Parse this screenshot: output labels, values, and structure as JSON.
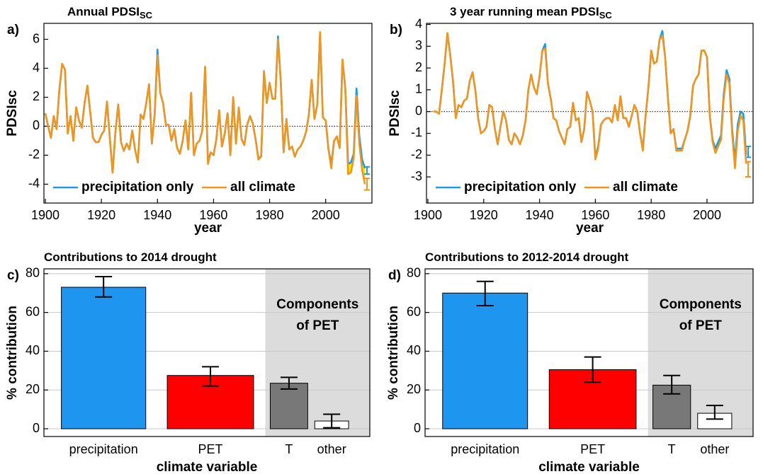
{
  "chart_data": [
    {
      "type": "line",
      "panel_label": "a)",
      "title": "Annual PDSI",
      "title_subscript": "SC",
      "ylabel": "PDSIsc",
      "xlabel": "year",
      "xlim": [
        1899.5,
        2016.5
      ],
      "xticks": [
        1900,
        1920,
        1940,
        1960,
        1980,
        2000
      ],
      "ylim": [
        -5.3,
        7.1
      ],
      "yticks": [
        -4,
        -2,
        0,
        2,
        4,
        6
      ],
      "zero_line": true,
      "legend": "lower left",
      "fill_between_color": "#ffe600",
      "x": [
        1900,
        1901,
        1902,
        1903,
        1904,
        1905,
        1906,
        1907,
        1908,
        1909,
        1910,
        1911,
        1912,
        1913,
        1914,
        1915,
        1916,
        1917,
        1918,
        1919,
        1920,
        1921,
        1922,
        1923,
        1924,
        1925,
        1926,
        1927,
        1928,
        1929,
        1930,
        1931,
        1932,
        1933,
        1934,
        1935,
        1936,
        1937,
        1938,
        1939,
        1940,
        1941,
        1942,
        1943,
        1944,
        1945,
        1946,
        1947,
        1948,
        1949,
        1950,
        1951,
        1952,
        1953,
        1954,
        1955,
        1956,
        1957,
        1958,
        1959,
        1960,
        1961,
        1962,
        1963,
        1964,
        1965,
        1966,
        1967,
        1968,
        1969,
        1970,
        1971,
        1972,
        1973,
        1974,
        1975,
        1976,
        1977,
        1978,
        1979,
        1980,
        1981,
        1982,
        1983,
        1984,
        1985,
        1986,
        1987,
        1988,
        1989,
        1990,
        1991,
        1992,
        1993,
        1994,
        1995,
        1996,
        1997,
        1998,
        1999,
        2000,
        2001,
        2002,
        2003,
        2004,
        2005,
        2006,
        2007,
        2008,
        2009,
        2010,
        2011,
        2012,
        2013,
        2014
      ],
      "series": [
        {
          "name": "precipitation only",
          "color": "#1e9be6",
          "end_range": [
            -3.3,
            -2.8
          ],
          "values": [
            0.9,
            0,
            -0.8,
            0.7,
            -0.2,
            2.5,
            4.3,
            3.9,
            -0.5,
            0.7,
            -1.0,
            1.3,
            0.4,
            -0.1,
            1.6,
            2.8,
            1.0,
            -0.8,
            -1.1,
            -1.1,
            -0.6,
            -0.3,
            1.7,
            -0.8,
            -3.2,
            -0.4,
            1.5,
            -1.1,
            -1.7,
            -1.2,
            -1.6,
            -0.3,
            -1.6,
            -2.5,
            0.8,
            0.5,
            1.6,
            2.9,
            -1.2,
            0.8,
            5.3,
            2.3,
            1.6,
            0.1,
            0.1,
            -1.0,
            -0.2,
            -1.5,
            -1.9,
            -1.0,
            0.4,
            -1.6,
            2.3,
            -2.0,
            -1.2,
            -1.0,
            -0.3,
            4.1,
            -2.4,
            -1.8,
            -2.0,
            -0.9,
            1.1,
            -1.4,
            -0.5,
            0.9,
            -2.0,
            2.0,
            -1.2,
            1.3,
            -0.9,
            -1.3,
            0.1,
            0.7,
            0.2,
            -0.9,
            -2.2,
            -2.1,
            3.8,
            1.6,
            3.0,
            1.9,
            1.9,
            6.2,
            3.0,
            -1.8,
            0.5,
            -1.6,
            -1.4,
            -2.1,
            -1.6,
            -1.4,
            -1.0,
            -0.4,
            0.8,
            3.2,
            0.5,
            1.5,
            6.4,
            0.6,
            0.4,
            -1.6,
            -2.6,
            -1.0,
            -0.7,
            -1.5,
            4.6,
            2.6,
            -2.6,
            -2.5,
            -1.9,
            2.6,
            -0.7,
            -2.3,
            -2.9
          ]
        },
        {
          "name": "all climate",
          "color": "#f0961e",
          "end_range": [
            -4.4,
            -3.6
          ],
          "values": [
            0.9,
            0,
            -0.8,
            0.7,
            -0.2,
            2.5,
            4.3,
            3.9,
            -0.5,
            0.7,
            -1.0,
            1.3,
            0.4,
            -0.1,
            1.6,
            2.8,
            1.0,
            -0.8,
            -1.1,
            -1.1,
            -0.6,
            -0.3,
            1.7,
            -0.8,
            -3.2,
            -0.4,
            1.5,
            -1.1,
            -1.7,
            -1.2,
            -1.6,
            -0.3,
            -1.6,
            -2.5,
            0.8,
            0.5,
            1.6,
            2.9,
            -1.2,
            0.8,
            4.9,
            2.3,
            1.6,
            0.1,
            0.1,
            -1.0,
            -0.2,
            -1.5,
            -1.9,
            -1.0,
            0.4,
            -1.6,
            2.3,
            -2.0,
            -1.2,
            -1.0,
            -0.3,
            4.1,
            -2.6,
            -1.8,
            -2.0,
            -0.9,
            1.1,
            -1.4,
            -0.5,
            0.9,
            -2.0,
            2.0,
            -1.2,
            1.3,
            -0.9,
            -1.3,
            0.1,
            0.7,
            0.2,
            -0.9,
            -2.3,
            -2.1,
            3.8,
            1.6,
            3.0,
            1.9,
            1.9,
            6.0,
            3.0,
            -1.8,
            0.5,
            -1.6,
            -1.4,
            -2.1,
            -1.6,
            -1.4,
            -1.0,
            -0.4,
            0.8,
            3.2,
            0.5,
            1.5,
            6.5,
            0.6,
            0.4,
            -1.6,
            -2.9,
            -1.0,
            -0.7,
            -1.5,
            4.6,
            2.6,
            -3.3,
            -3.2,
            -2.2,
            2.1,
            -1.2,
            -3.0,
            -4.0
          ]
        }
      ]
    },
    {
      "type": "line",
      "panel_label": "b)",
      "title": "3 year running mean PDSI",
      "title_subscript": "SC",
      "ylabel": "PDSIsc",
      "xlabel": "year",
      "xlim": [
        1899.5,
        2016.5
      ],
      "xticks": [
        1900,
        1920,
        1940,
        1960,
        1980,
        2000
      ],
      "ylim": [
        -4.2,
        4.05
      ],
      "yticks": [
        -3,
        -2,
        -1,
        0,
        1,
        2,
        3,
        4
      ],
      "zero_line": true,
      "legend": "lower left",
      "fill_between_color": "#ffe600",
      "x": [
        1902,
        1903,
        1904,
        1905,
        1906,
        1907,
        1908,
        1909,
        1910,
        1911,
        1912,
        1913,
        1914,
        1915,
        1916,
        1917,
        1918,
        1919,
        1920,
        1921,
        1922,
        1923,
        1924,
        1925,
        1926,
        1927,
        1928,
        1929,
        1930,
        1931,
        1932,
        1933,
        1934,
        1935,
        1936,
        1937,
        1938,
        1939,
        1940,
        1941,
        1942,
        1943,
        1944,
        1945,
        1946,
        1947,
        1948,
        1949,
        1950,
        1951,
        1952,
        1953,
        1954,
        1955,
        1956,
        1957,
        1958,
        1959,
        1960,
        1961,
        1962,
        1963,
        1964,
        1965,
        1966,
        1967,
        1968,
        1969,
        1970,
        1971,
        1972,
        1973,
        1974,
        1975,
        1976,
        1977,
        1978,
        1979,
        1980,
        1981,
        1982,
        1983,
        1984,
        1985,
        1986,
        1987,
        1988,
        1989,
        1990,
        1991,
        1992,
        1993,
        1994,
        1995,
        1996,
        1997,
        1998,
        1999,
        2000,
        2001,
        2002,
        2003,
        2004,
        2005,
        2006,
        2007,
        2008,
        2009,
        2010,
        2011,
        2012,
        2013,
        2014
      ],
      "series": [
        {
          "name": "precipitation only",
          "color": "#1e9be6",
          "end_range": [
            -2.1,
            -1.6
          ],
          "values": [
            0,
            0,
            -0.1,
            1.0,
            2.2,
            3.6,
            2.6,
            1.4,
            -0.3,
            0.3,
            0.2,
            0.5,
            0.6,
            1.4,
            1.8,
            1.0,
            -0.3,
            -1.0,
            -0.9,
            -0.7,
            0.3,
            0.2,
            -0.8,
            -1.5,
            -0.7,
            0,
            -0.4,
            -1.3,
            -1.5,
            -1.0,
            -1.2,
            -1.5,
            -1.1,
            -0.4,
            1.0,
            1.7,
            1.1,
            0.8,
            1.6,
            2.8,
            3.1,
            1.3,
            0.6,
            -0.3,
            -0.4,
            -0.9,
            -1.2,
            -1.5,
            -0.8,
            -0.7,
            0.4,
            -0.4,
            -0.3,
            -1.4,
            -0.8,
            0.9,
            0.5,
            0,
            -2.1,
            -1.6,
            -0.6,
            -0.4,
            -0.3,
            -0.3,
            -0.5,
            0.3,
            -0.4,
            0.7,
            -0.3,
            -0.3,
            -0.7,
            -0.2,
            0.3,
            0,
            -1.0,
            -1.7,
            -0.2,
            1.1,
            2.8,
            2.2,
            2.3,
            3.3,
            3.7,
            2.5,
            0.6,
            -1.0,
            -0.8,
            -1.7,
            -1.7,
            -1.7,
            -1.3,
            -0.9,
            -0.2,
            1.2,
            1.5,
            1.7,
            2.8,
            2.8,
            2.5,
            -0.2,
            -1.3,
            -1.7,
            -1.4,
            -1.1,
            0.8,
            1.9,
            1.5,
            -0.8,
            -2.3,
            -0.6,
            0,
            -0.1,
            -2.0
          ]
        },
        {
          "name": "all climate",
          "color": "#f0961e",
          "end_range": [
            -3.0,
            -2.3
          ],
          "values": [
            0,
            0,
            -0.1,
            1.0,
            2.2,
            3.6,
            2.6,
            1.4,
            -0.3,
            0.3,
            0.2,
            0.5,
            0.6,
            1.4,
            1.8,
            1.0,
            -0.3,
            -1.0,
            -0.9,
            -0.7,
            0.3,
            0.2,
            -0.8,
            -1.5,
            -0.7,
            0,
            -0.4,
            -1.3,
            -1.5,
            -1.0,
            -1.2,
            -1.5,
            -1.1,
            -0.4,
            1.0,
            1.7,
            1.1,
            0.8,
            1.6,
            2.8,
            2.9,
            1.3,
            0.6,
            -0.3,
            -0.4,
            -0.9,
            -1.2,
            -1.5,
            -0.8,
            -0.7,
            0.4,
            -0.4,
            -0.3,
            -1.4,
            -0.8,
            0.9,
            0.5,
            0,
            -2.2,
            -1.7,
            -0.6,
            -0.4,
            -0.3,
            -0.3,
            -0.5,
            0.3,
            -0.4,
            0.7,
            -0.3,
            -0.3,
            -0.7,
            -0.2,
            0.3,
            0,
            -1.0,
            -1.8,
            -0.2,
            1.1,
            2.8,
            2.2,
            2.3,
            3.3,
            3.5,
            2.5,
            0.6,
            -1.0,
            -0.8,
            -1.8,
            -1.8,
            -1.8,
            -1.3,
            -0.9,
            -0.2,
            1.2,
            1.5,
            1.7,
            2.8,
            2.8,
            2.5,
            -0.2,
            -1.4,
            -1.9,
            -1.6,
            -1.3,
            0.6,
            1.7,
            1.3,
            -1.0,
            -2.6,
            -0.9,
            -0.2,
            -0.4,
            -2.4
          ]
        }
      ]
    },
    {
      "type": "bar",
      "panel_label": "c)",
      "title": "Contributions to 2014 drought",
      "ylabel": "% contribution",
      "xlabel": "climate variable",
      "ylim": [
        -4,
        82.5
      ],
      "yticks": [
        0,
        20,
        40,
        60,
        80
      ],
      "grid": true,
      "categories": [
        "precipitation",
        "PET",
        "T",
        "other"
      ],
      "values": [
        73,
        27.5,
        23.5,
        4
      ],
      "errors": [
        [
          68,
          78.5
        ],
        [
          22,
          32
        ],
        [
          20.5,
          26.5
        ],
        [
          0.5,
          7.5
        ]
      ],
      "colors": [
        "#1e96f0",
        "#ff0000",
        "#787878",
        "#ffffff"
      ],
      "shade": {
        "from": 2,
        "color": "#dcdcdc",
        "text": [
          "Components",
          "of PET"
        ]
      }
    },
    {
      "type": "bar",
      "panel_label": "d)",
      "title": "Contributions to 2012-2014 drought",
      "ylabel": "% contribution",
      "xlabel": "climate variable",
      "ylim": [
        -4,
        82.5
      ],
      "yticks": [
        0,
        20,
        40,
        60,
        80
      ],
      "grid": true,
      "categories": [
        "precipitation",
        "PET",
        "T",
        "other"
      ],
      "values": [
        70,
        30.5,
        22.5,
        8
      ],
      "errors": [
        [
          63.5,
          76
        ],
        [
          24,
          37
        ],
        [
          18,
          27.5
        ],
        [
          5,
          12
        ]
      ],
      "colors": [
        "#1e96f0",
        "#ff0000",
        "#787878",
        "#ffffff"
      ],
      "shade": {
        "from": 2,
        "color": "#dcdcdc",
        "text": [
          "Components",
          "of PET"
        ]
      }
    }
  ]
}
